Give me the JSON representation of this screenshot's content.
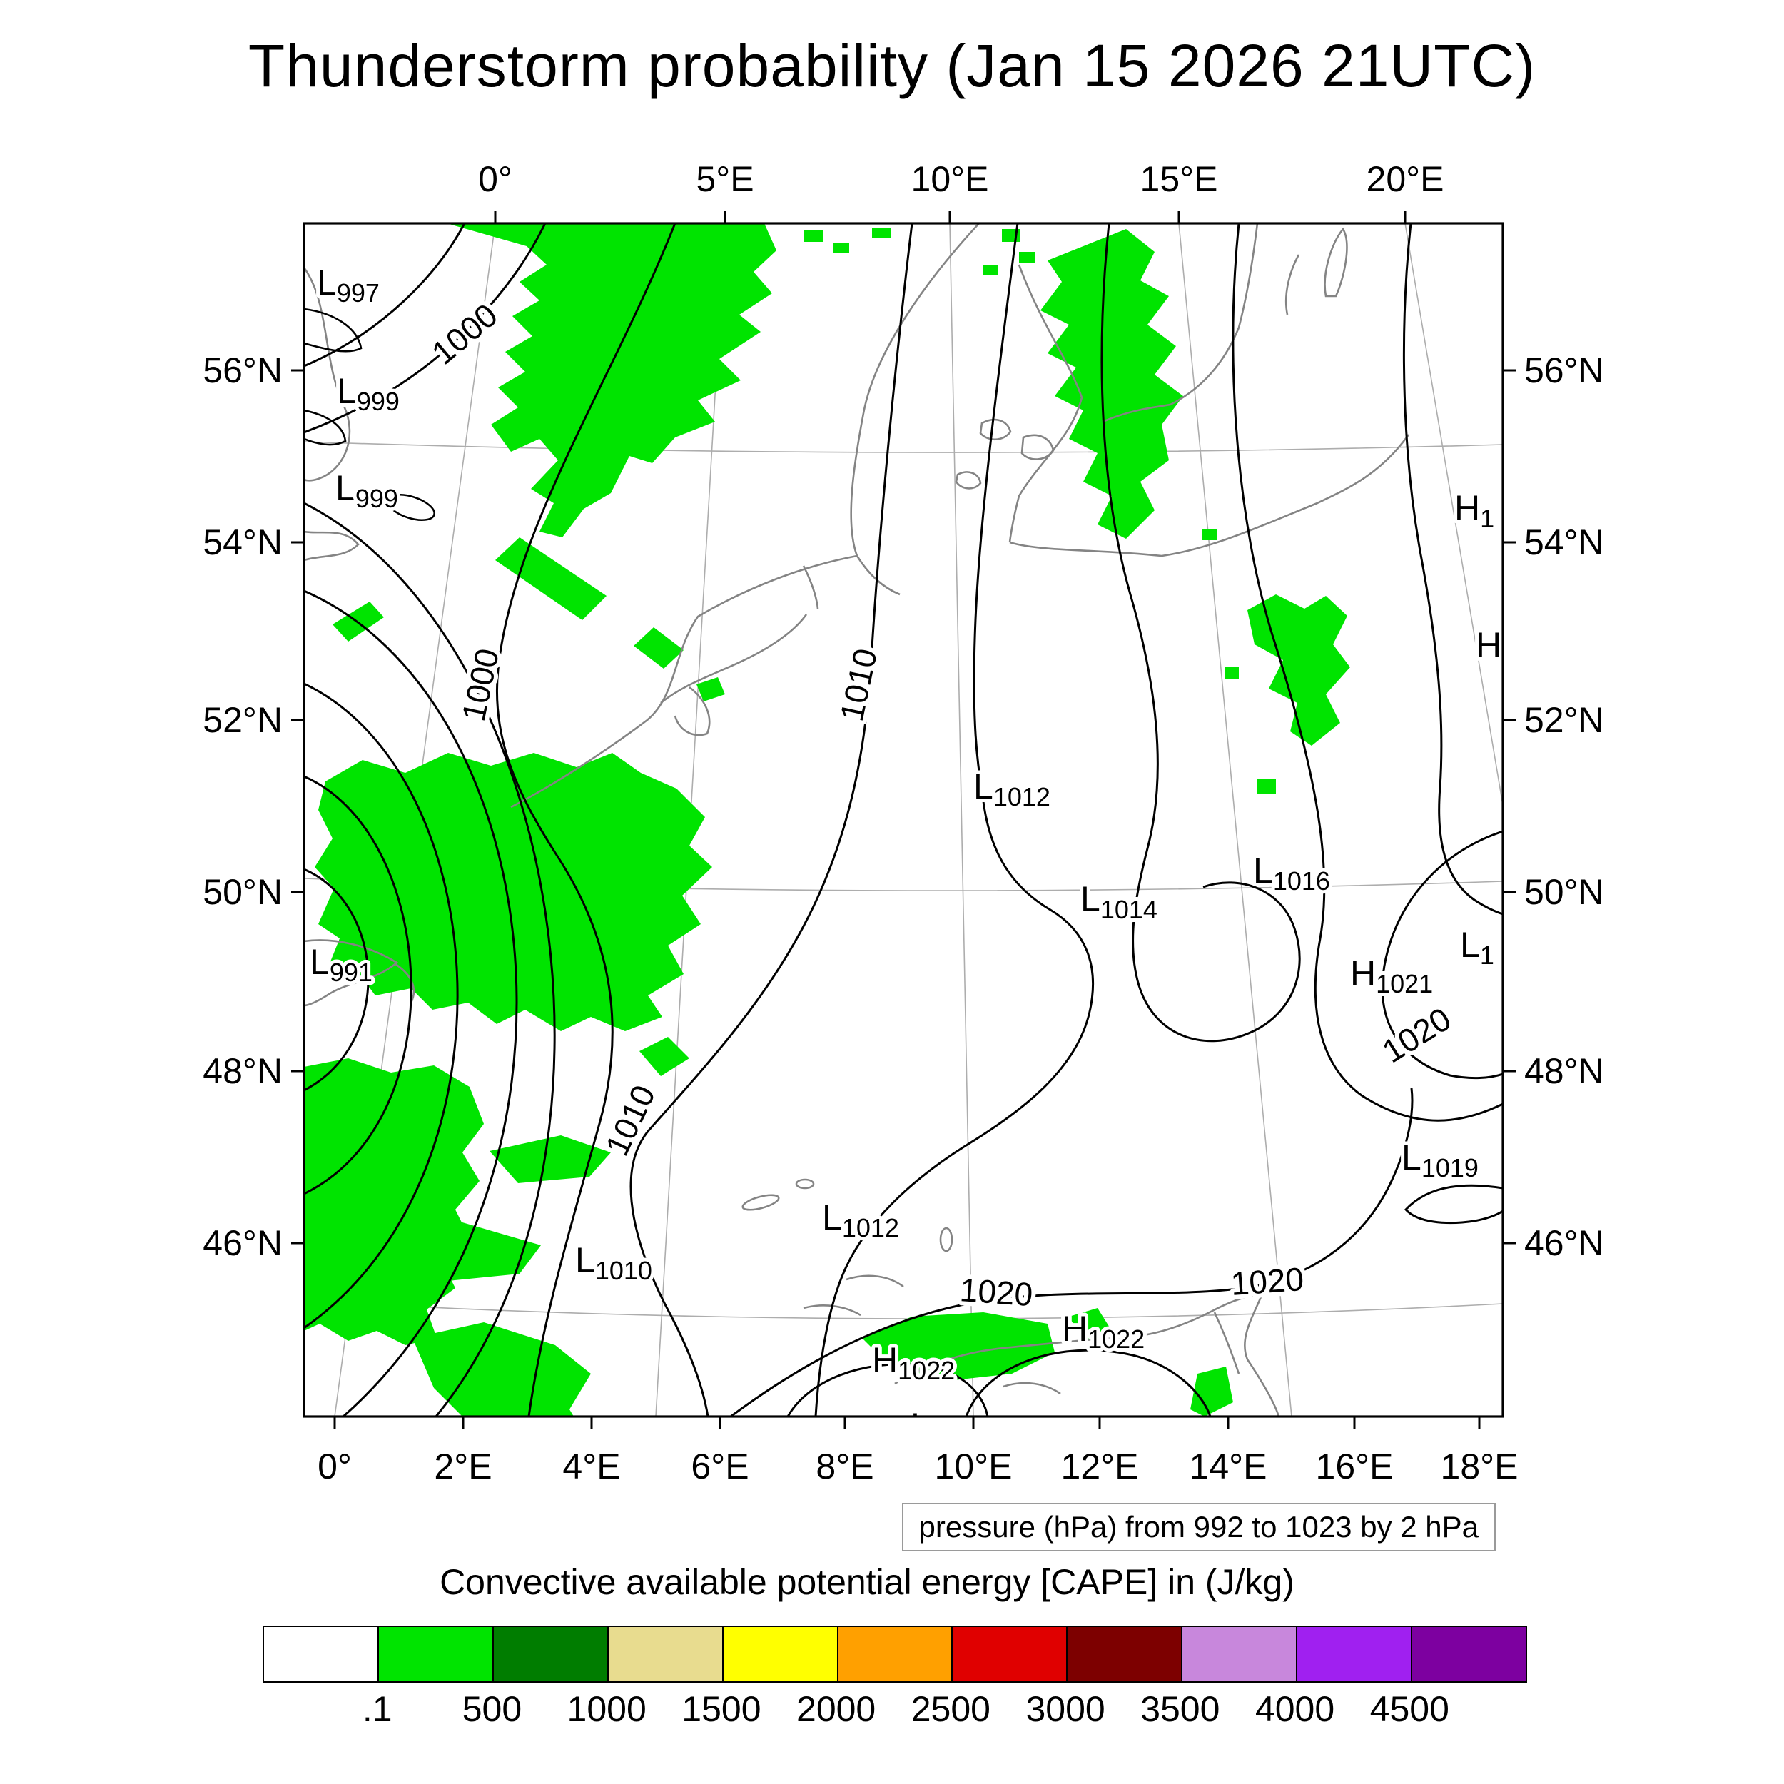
{
  "title": "Thunderstorm probability (Jan 15 2026 21UTC)",
  "axes": {
    "top": [
      "0°",
      "5°E",
      "10°E",
      "15°E",
      "20°E"
    ],
    "bottom": [
      "0°",
      "2°E",
      "4°E",
      "6°E",
      "8°E",
      "10°E",
      "12°E",
      "14°E",
      "16°E",
      "18°E"
    ],
    "left": [
      "56°N",
      "54°N",
      "52°N",
      "50°N",
      "48°N",
      "46°N"
    ],
    "right": [
      "56°N",
      "54°N",
      "52°N",
      "50°N",
      "48°N",
      "46°N"
    ]
  },
  "pressure_caption": "pressure (hPa) from 992 to 1023 by 2 hPa",
  "legend": {
    "title": "Convective available potential energy [CAPE] in (J/kg)",
    "tick_labels": [
      ".1",
      "500",
      "1000",
      "1500",
      "2000",
      "2500",
      "3000",
      "3500",
      "4000",
      "4500"
    ],
    "colors": [
      "#ffffff",
      "#00e400",
      "#007d00",
      "#e8dc8f",
      "#ffff00",
      "#ffa000",
      "#e00000",
      "#7d0000",
      "#c887dc",
      "#a020f0",
      "#7d00a0"
    ]
  },
  "contour_labels": [
    "1000",
    "1000",
    "1010",
    "1010",
    "1020",
    "1020",
    "1020"
  ],
  "pressure_centers": [
    {
      "letter": "L",
      "value": "997"
    },
    {
      "letter": "L",
      "value": "999"
    },
    {
      "letter": "L",
      "value": "999"
    },
    {
      "letter": "L",
      "value": "991"
    },
    {
      "letter": "L",
      "value": "1012"
    },
    {
      "letter": "L",
      "value": "1014"
    },
    {
      "letter": "L",
      "value": "1016"
    },
    {
      "letter": "H",
      "value": "1021"
    },
    {
      "letter": "L",
      "value": "1019"
    },
    {
      "letter": "L",
      "value": "1012"
    },
    {
      "letter": "L",
      "value": "1010"
    },
    {
      "letter": "H",
      "value": "1022"
    },
    {
      "letter": "H",
      "value": "1022"
    },
    {
      "letter": "H",
      "value": "1"
    },
    {
      "letter": "H",
      "value": ""
    },
    {
      "letter": "L",
      "value": "1"
    },
    {
      "letter": "L",
      "value": ""
    }
  ],
  "chart_data": {
    "type": "heatmap",
    "title": "Thunderstorm probability (Jan 15 2026 21UTC)",
    "valid_time": "Jan 15 2026 21UTC",
    "region": {
      "lon_ticks_top_deg": [
        0,
        5,
        10,
        15,
        20
      ],
      "lon_ticks_bottom_deg": [
        0,
        2,
        4,
        6,
        8,
        10,
        12,
        14,
        16,
        18
      ],
      "lat_ticks_deg_N": [
        56,
        54,
        52,
        50,
        48,
        46
      ]
    },
    "projection_hint": "conic map of western/central Europe, meridians converge toward top",
    "contour_field": {
      "variable": "pressure",
      "units": "hPa",
      "min": 992,
      "max": 1023,
      "interval": 2,
      "inline_labels": [
        1000,
        1000,
        1010,
        1010,
        1020,
        1020,
        1020
      ]
    },
    "pressure_centers": [
      {
        "type": "Low",
        "label": "L997",
        "approx_lon_E": -3.5,
        "approx_lat_N": 57.0
      },
      {
        "type": "Low",
        "label": "L999",
        "approx_lon_E": -2.7,
        "approx_lat_N": 55.7
      },
      {
        "type": "Low",
        "label": "L999",
        "approx_lon_E": -2.4,
        "approx_lat_N": 54.6
      },
      {
        "type": "Low",
        "label": "L991",
        "approx_lon_E": -1.5,
        "approx_lat_N": 49.1
      },
      {
        "type": "Low",
        "label": "L1012",
        "approx_lon_E": 10.3,
        "approx_lat_N": 51.1
      },
      {
        "type": "Low",
        "label": "L1014",
        "approx_lon_E": 12.1,
        "approx_lat_N": 49.8
      },
      {
        "type": "Low",
        "label": "L1016",
        "approx_lon_E": 15.2,
        "approx_lat_N": 50.1
      },
      {
        "type": "High",
        "label": "H1021",
        "approx_lon_E": 16.7,
        "approx_lat_N": 48.9
      },
      {
        "type": "Low",
        "label": "L1019",
        "approx_lon_E": 17.2,
        "approx_lat_N": 46.8
      },
      {
        "type": "Low",
        "label": "L1012",
        "approx_lon_E": 7.6,
        "approx_lat_N": 46.1
      },
      {
        "type": "Low",
        "label": "L1010",
        "approx_lon_E": 3.6,
        "approx_lat_N": 45.6
      },
      {
        "type": "High",
        "label": "H1022",
        "approx_lon_E": 11.5,
        "approx_lat_N": 44.8
      },
      {
        "type": "High",
        "label": "H1022",
        "approx_lon_E": 8.4,
        "approx_lat_N": 44.5
      },
      {
        "type": "High",
        "label": "H1… (clipped at right edge)",
        "approx_lon_E": 20.2,
        "approx_lat_N": 54.3
      },
      {
        "type": "High",
        "label": "H (clipped at right edge)",
        "approx_lon_E": 19.8,
        "approx_lat_N": 52.7
      },
      {
        "type": "Low",
        "label": "L1… (clipped at right edge)",
        "approx_lon_E": 18.6,
        "approx_lat_N": 49.3
      },
      {
        "type": "Low",
        "label": "L (clipped at bottom edge)",
        "approx_lon_E": 9.0,
        "approx_lat_N": 44.3
      }
    ],
    "shaded_field": {
      "variable": "Convective available potential energy [CAPE]",
      "units": "J/kg",
      "levels": [
        0.1,
        500,
        1000,
        1500,
        2000,
        2500,
        3000,
        3500,
        4000,
        4500
      ],
      "palette": [
        "#ffffff",
        "#00e400",
        "#007d00",
        "#e8dc8f",
        "#ffff00",
        "#ffa000",
        "#e00000",
        "#7d0000",
        "#c887dc",
        "#a020f0",
        "#7d00a0"
      ],
      "note": "Only the lowest class (0.1–500 J/kg, bright green) appears on the map"
    },
    "shaded_regions_approx": [
      "North Sea, about 2–8°E / 55–58°N (large ragged patch)",
      "Kattegat / western Baltic, about 12–13.5°E / 54–57.5°N",
      "Around 15–16°E / 51.5–53.5°N (small patch plus specks)",
      "English Channel / Benelux / NW France, about 0–5°E / 48.5–51.5°N (large patch)",
      "Western France, about 0–2.5°E / 44.5–47.5°N (large patch reaching the left edge)",
      "Northern Italy / Ligurian coast, about 8.5–12°E / 44.5–45.3°N",
      "Scattered small specks elsewhere"
    ],
    "legend_position": "bottom horizontal colorbar",
    "grid": "thin gray graticule lines (meridians 0–20°E, parallel near 45°N)"
  }
}
